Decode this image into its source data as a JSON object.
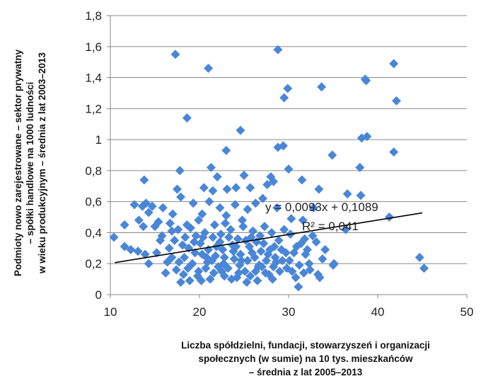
{
  "chart_data": {
    "type": "scatter",
    "xlabel": [
      "Liczba spółdzielni, fundacji, stowarzyszeń i organizacji",
      "społecznych (w sumie) na 10 tys. mieszkańców",
      "– średnia z lat 2005–2013"
    ],
    "ylabel": [
      "Podmioty nowo zarejestrowane – sektor prywatny",
      "– spółki handlowe na 1000 ludności",
      "w wieku produkcyjnym – średnia z lat 2003–2013"
    ],
    "xlim": [
      10,
      50
    ],
    "ylim": [
      0,
      1.8
    ],
    "x_ticks": [
      10,
      20,
      30,
      40,
      50
    ],
    "y_ticks": [
      0,
      0.2,
      0.4,
      0.6,
      0.8,
      1,
      1.2,
      1.4,
      1.6,
      1.8
    ],
    "x_tick_labels": [
      "10",
      "20",
      "30",
      "40",
      "50"
    ],
    "y_tick_labels": [
      "0",
      "0,2",
      "0,4",
      "0,6",
      "0,8",
      "1",
      "1,2",
      "1,4",
      "1,6",
      "1,8"
    ],
    "grid": "horizontal",
    "point_color": "#4a86d8",
    "trendline": {
      "slope": 0.0093,
      "intercept": 0.1089,
      "x_range": [
        10.5,
        45
      ]
    },
    "annotations": {
      "equation": "y = 0,0093x + 0,1089",
      "r_squared": "R² = 0,041"
    },
    "points": [
      [
        17.3,
        1.55
      ],
      [
        21,
        1.46
      ],
      [
        28.8,
        1.58
      ],
      [
        33.7,
        1.34
      ],
      [
        29.9,
        1.33
      ],
      [
        29.5,
        1.27
      ],
      [
        41.8,
        1.49
      ],
      [
        42.1,
        1.25
      ],
      [
        38.7,
        1.38
      ],
      [
        38.6,
        1.39
      ],
      [
        18.6,
        1.14
      ],
      [
        24.6,
        1.06
      ],
      [
        28.8,
        0.95
      ],
      [
        29.4,
        0.96
      ],
      [
        34.9,
        0.9
      ],
      [
        38.2,
        1.01
      ],
      [
        38.8,
        1.02
      ],
      [
        41.8,
        0.92
      ],
      [
        23,
        0.93
      ],
      [
        17.8,
        0.8
      ],
      [
        21.3,
        0.82
      ],
      [
        22,
        0.76
      ],
      [
        25,
        0.77
      ],
      [
        28,
        0.76
      ],
      [
        30,
        0.81
      ],
      [
        31.5,
        0.74
      ],
      [
        38,
        0.82
      ],
      [
        13.8,
        0.74
      ],
      [
        17.5,
        0.68
      ],
      [
        20.5,
        0.69
      ],
      [
        21.5,
        0.67
      ],
      [
        23.1,
        0.68
      ],
      [
        24.1,
        0.69
      ],
      [
        25.7,
        0.69
      ],
      [
        27.6,
        0.71
      ],
      [
        28.3,
        0.73
      ],
      [
        33.4,
        0.68
      ],
      [
        36.6,
        0.65
      ],
      [
        38.1,
        0.64
      ],
      [
        41.3,
        0.5
      ],
      [
        11.6,
        0.45
      ],
      [
        12.7,
        0.58
      ],
      [
        13.2,
        0.48
      ],
      [
        13.6,
        0.57
      ],
      [
        14,
        0.59
      ],
      [
        14.3,
        0.53
      ],
      [
        14.7,
        0.57
      ],
      [
        15,
        0.44
      ],
      [
        15.4,
        0.47
      ],
      [
        15.9,
        0.56
      ],
      [
        16.7,
        0.46
      ],
      [
        17,
        0.52
      ],
      [
        17.9,
        0.63
      ],
      [
        18.6,
        0.45
      ],
      [
        19.3,
        0.59
      ],
      [
        19.9,
        0.48
      ],
      [
        20.3,
        0.52
      ],
      [
        21.1,
        0.6
      ],
      [
        22.3,
        0.56
      ],
      [
        23,
        0.51
      ],
      [
        24,
        0.58
      ],
      [
        25.4,
        0.55
      ],
      [
        26.3,
        0.59
      ],
      [
        27.1,
        0.62
      ],
      [
        28.7,
        0.56
      ],
      [
        30.3,
        0.49
      ],
      [
        31.6,
        0.48
      ],
      [
        32.8,
        0.56
      ],
      [
        36.4,
        0.42
      ],
      [
        10.4,
        0.37
      ],
      [
        11.6,
        0.31
      ],
      [
        12.3,
        0.29
      ],
      [
        13.1,
        0.28
      ],
      [
        13.9,
        0.26
      ],
      [
        14.3,
        0.2
      ],
      [
        15.6,
        0.35
      ],
      [
        16.2,
        0.14
      ],
      [
        16.4,
        0.21
      ],
      [
        16.9,
        0.24
      ],
      [
        17.4,
        0.16
      ],
      [
        17.9,
        0.08
      ],
      [
        44.7,
        0.24
      ],
      [
        45.2,
        0.17
      ],
      [
        31.1,
        0.05
      ],
      [
        33.3,
        0.13
      ],
      [
        35,
        0.19
      ],
      [
        33.8,
        0.23
      ],
      [
        32.3,
        0.2
      ],
      [
        34.1,
        0.29
      ],
      [
        31.4,
        0.33
      ],
      [
        32.7,
        0.38
      ],
      [
        30.2,
        0.39
      ],
      [
        29.5,
        0.42
      ],
      [
        31.7,
        0.14
      ],
      [
        30.8,
        0.11
      ],
      [
        29.8,
        0.17
      ],
      [
        28.2,
        0.1
      ],
      [
        27.4,
        0.14
      ],
      [
        26.5,
        0.09
      ],
      [
        25.3,
        0.08
      ],
      [
        24.2,
        0.11
      ],
      [
        22.8,
        0.12
      ],
      [
        21.2,
        0.1
      ],
      [
        19.8,
        0.12
      ],
      [
        18.7,
        0.17
      ],
      [
        18.3,
        0.24
      ],
      [
        18.8,
        0.3
      ],
      [
        19.6,
        0.38
      ],
      [
        20.3,
        0.26
      ],
      [
        20.7,
        0.17
      ],
      [
        21.4,
        0.22
      ],
      [
        21.9,
        0.31
      ],
      [
        22.4,
        0.39
      ],
      [
        22.8,
        0.24
      ],
      [
        23.2,
        0.17
      ],
      [
        23.8,
        0.28
      ],
      [
        24.3,
        0.36
      ],
      [
        24.7,
        0.22
      ],
      [
        25.1,
        0.15
      ],
      [
        25.6,
        0.31
      ],
      [
        26.2,
        0.24
      ],
      [
        26.7,
        0.19
      ],
      [
        27.2,
        0.33
      ],
      [
        27.7,
        0.26
      ],
      [
        28.1,
        0.4
      ],
      [
        28.6,
        0.21
      ],
      [
        29.2,
        0.29
      ],
      [
        19.2,
        0.2
      ],
      [
        20.1,
        0.33
      ],
      [
        21.7,
        0.45
      ],
      [
        22.1,
        0.18
      ],
      [
        23.5,
        0.42
      ],
      [
        24.9,
        0.44
      ],
      [
        26,
        0.41
      ],
      [
        27,
        0.18
      ],
      [
        28.4,
        0.31
      ],
      [
        29,
        0.15
      ],
      [
        19.5,
        0.27
      ],
      [
        20.9,
        0.21
      ],
      [
        22.6,
        0.29
      ],
      [
        24.5,
        0.19
      ],
      [
        25.9,
        0.27
      ],
      [
        27.5,
        0.22
      ],
      [
        21.8,
        0.25
      ],
      [
        23.9,
        0.23
      ],
      [
        25.4,
        0.22
      ],
      [
        26.9,
        0.28
      ],
      [
        20.6,
        0.4
      ],
      [
        18.4,
        0.37
      ],
      [
        17.2,
        0.35
      ],
      [
        16.6,
        0.3
      ],
      [
        15.2,
        0.27
      ],
      [
        30.6,
        0.27
      ],
      [
        31.9,
        0.26
      ],
      [
        32.4,
        0.16
      ],
      [
        33.5,
        0.11
      ],
      [
        30.1,
        0.22
      ],
      [
        22.3,
        0.34
      ],
      [
        24.1,
        0.31
      ],
      [
        26.4,
        0.34
      ],
      [
        28.9,
        0.35
      ],
      [
        19.9,
        0.15
      ],
      [
        21.6,
        0.14
      ],
      [
        23.6,
        0.1
      ],
      [
        25.7,
        0.12
      ],
      [
        27.8,
        0.13
      ],
      [
        17.7,
        0.21
      ],
      [
        18.9,
        0.09
      ],
      [
        20.2,
        0.09
      ],
      [
        26.8,
        0.38
      ],
      [
        23.3,
        0.37
      ],
      [
        25.2,
        0.35
      ],
      [
        29.7,
        0.27
      ],
      [
        31.2,
        0.19
      ],
      [
        21,
        0.29
      ],
      [
        22.7,
        0.2
      ],
      [
        24.6,
        0.26
      ],
      [
        26.6,
        0.18
      ],
      [
        28.5,
        0.24
      ],
      [
        20.4,
        0.37
      ],
      [
        27.3,
        0.44
      ],
      [
        24.8,
        0.48
      ],
      [
        22.9,
        0.46
      ],
      [
        19,
        0.43
      ],
      [
        18.1,
        0.32
      ],
      [
        16.9,
        0.41
      ],
      [
        30.9,
        0.31
      ],
      [
        32.1,
        0.29
      ],
      [
        33.1,
        0.34
      ],
      [
        35.1,
        0.2
      ],
      [
        19.4,
        0.34
      ],
      [
        21.5,
        0.37
      ],
      [
        23.7,
        0.32
      ],
      [
        25.8,
        0.37
      ],
      [
        27.9,
        0.29
      ],
      [
        29.3,
        0.22
      ],
      [
        22.5,
        0.15
      ],
      [
        24.4,
        0.14
      ],
      [
        26.3,
        0.15
      ],
      [
        28.3,
        0.18
      ],
      [
        20.8,
        0.24
      ],
      [
        18.2,
        0.13
      ],
      [
        30.4,
        0.15
      ],
      [
        31.8,
        0.36
      ],
      [
        13.7,
        0.44
      ],
      [
        15.8,
        0.38
      ],
      [
        17.6,
        0.42
      ]
    ]
  }
}
